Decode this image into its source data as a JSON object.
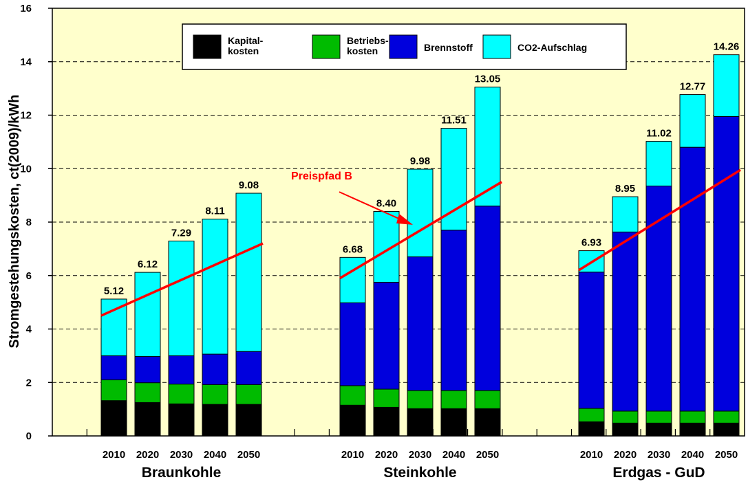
{
  "chart_data": {
    "type": "bar",
    "stacked": true,
    "ylabel": "Stromgestehungskosten, ct(2009)/kWh",
    "ylim": [
      0,
      16
    ],
    "yticks": [
      0,
      2,
      4,
      6,
      8,
      10,
      12,
      14,
      16
    ],
    "grid": "horizontal dashed",
    "legend_position": "top",
    "colors": {
      "background": "#ffffcc",
      "Kapitalkosten": "#000000",
      "Betriebskosten": "#00bb00",
      "Brennstoff": "#0000dd",
      "CO2-Aufschlag": "#00ffff",
      "trend": "#ff0000"
    },
    "legend": [
      {
        "key": "Kapitalkosten",
        "lines": [
          "Kapital-",
          "kosten"
        ]
      },
      {
        "key": "Betriebskosten",
        "lines": [
          "Betriebs-",
          "kosten"
        ]
      },
      {
        "key": "Brennstoff",
        "lines": [
          "Brennstoff"
        ]
      },
      {
        "key": "CO2-Aufschlag",
        "lines": [
          "CO2-Aufschlag"
        ]
      }
    ],
    "series_order": [
      "Kapitalkosten",
      "Betriebskosten",
      "Brennstoff",
      "CO2-Aufschlag"
    ],
    "groups": [
      {
        "name": "Braunkohle",
        "years": [
          "2010",
          "2020",
          "2030",
          "2040",
          "2050"
        ],
        "totals": [
          "5.12",
          "6.12",
          "7.29",
          "8.11",
          "9.08"
        ],
        "stacks": {
          "Kapitalkosten": [
            1.32,
            1.25,
            1.2,
            1.18,
            1.18
          ],
          "Betriebskosten": [
            0.78,
            0.74,
            0.74,
            0.74,
            0.74
          ],
          "Brennstoff": [
            0.9,
            0.98,
            1.06,
            1.14,
            1.24
          ],
          "CO2-Aufschlag": [
            2.12,
            3.15,
            4.29,
            5.05,
            5.92
          ]
        },
        "trend": [
          4.5,
          7.2
        ]
      },
      {
        "name": "Steinkohle",
        "years": [
          "2010",
          "2020",
          "2030",
          "2040",
          "2050"
        ],
        "totals": [
          "6.68",
          "8.40",
          "9.98",
          "11.51",
          "13.05"
        ],
        "stacks": {
          "Kapitalkosten": [
            1.15,
            1.07,
            1.02,
            1.02,
            1.02
          ],
          "Betriebskosten": [
            0.73,
            0.68,
            0.68,
            0.68,
            0.68
          ],
          "Brennstoff": [
            3.1,
            4.0,
            5.0,
            6.0,
            6.9
          ],
          "CO2-Aufschlag": [
            1.7,
            2.65,
            3.28,
            3.81,
            4.45
          ]
        },
        "trend": [
          5.9,
          9.5
        ]
      },
      {
        "name": "Erdgas - GuD",
        "years": [
          "2010",
          "2020",
          "2030",
          "2040",
          "2050"
        ],
        "totals": [
          "6.93",
          "8.95",
          "11.02",
          "12.77",
          "14.26"
        ],
        "stacks": {
          "Kapitalkosten": [
            0.53,
            0.48,
            0.48,
            0.48,
            0.48
          ],
          "Betriebskosten": [
            0.5,
            0.45,
            0.45,
            0.45,
            0.45
          ],
          "Brennstoff": [
            5.1,
            6.7,
            8.42,
            9.87,
            11.02
          ],
          "CO2-Aufschlag": [
            0.8,
            1.32,
            1.67,
            1.97,
            2.31
          ]
        },
        "trend": [
          6.2,
          9.95
        ]
      }
    ],
    "annotation": {
      "text": "Preispfad B",
      "arrow_from": {
        "group": "Steinkohle",
        "bar_index": 1,
        "y": 9.0
      },
      "arrow_to": {
        "group": "Steinkohle",
        "bar_index": 2,
        "y": 7.85
      }
    }
  }
}
